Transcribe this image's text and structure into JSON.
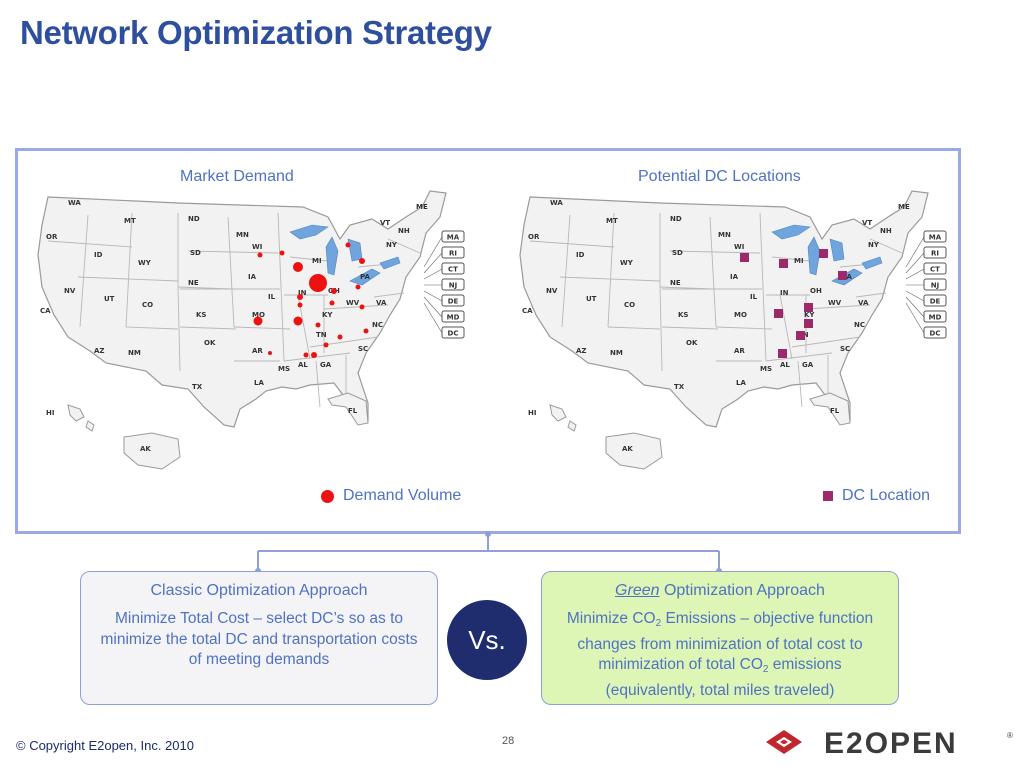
{
  "title": "Network Optimization Strategy",
  "maps": {
    "left_caption": "Market Demand",
    "right_caption": "Potential DC Locations",
    "left_legend": "Demand Volume",
    "right_legend": "DC Location",
    "state_labels": [
      "WA",
      "OR",
      "CA",
      "NV",
      "ID",
      "MT",
      "WY",
      "UT",
      "AZ",
      "NM",
      "CO",
      "ND",
      "SD",
      "NE",
      "KS",
      "OK",
      "TX",
      "MN",
      "IA",
      "MO",
      "AR",
      "LA",
      "WI",
      "IL",
      "MI",
      "IN",
      "OH",
      "KY",
      "TN",
      "MS",
      "AL",
      "GA",
      "FL",
      "SC",
      "NC",
      "VA",
      "WV",
      "PA",
      "NY",
      "VT",
      "NH",
      "ME",
      "HI",
      "AK"
    ],
    "small_states": [
      "MA",
      "RI",
      "CT",
      "NJ",
      "DE",
      "MD",
      "DC"
    ],
    "colors": {
      "demand": "#ee1111",
      "dc": "#9c2a6a",
      "land": "#f2f2f2",
      "water": "#6fa4dc"
    }
  },
  "classic": {
    "title": "Classic Optimization Approach",
    "body": "Minimize Total Cost – select DC’s so as to minimize the total DC and transportation costs of meeting demands"
  },
  "vs": "Vs.",
  "green": {
    "title_em": "Green",
    "title_rest": " Optimization Approach",
    "line1a": "Minimize CO",
    "sub": "2",
    "line1b": " Emissions – objective function changes from minimization of total cost to minimization of total CO",
    "line2b": " emissions (equivalently, total miles traveled)"
  },
  "footer": {
    "copyright": "© Copyright E2open, Inc. 2010",
    "page": "28",
    "logo_text": "E2OPEN"
  }
}
